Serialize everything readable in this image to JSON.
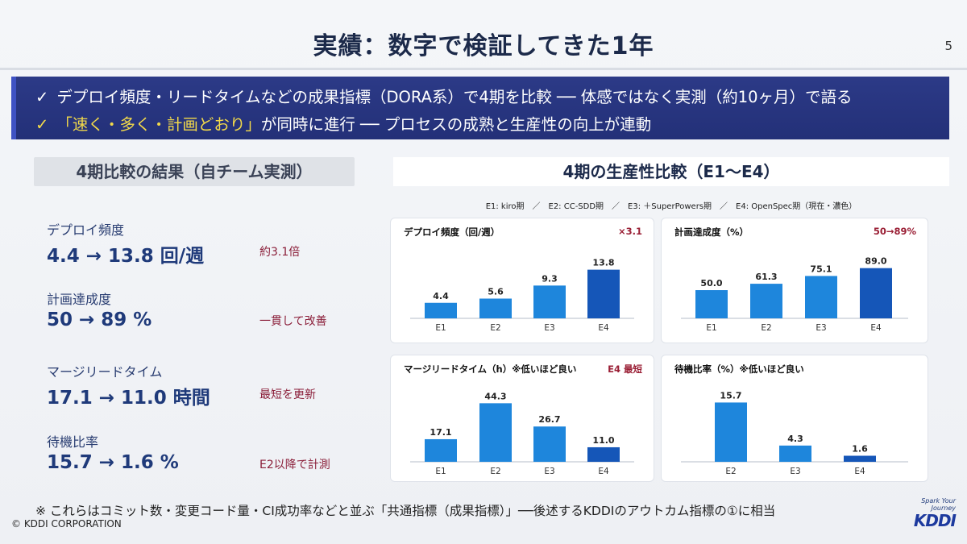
{
  "slide": {
    "title": "実績：数字で検証してきた1年",
    "page_number": "5",
    "banner": {
      "line1": "デプロイ頻度・リードタイムなどの成果指標（DORA系）で4期を比較 ── 体感ではなく実測（約10ヶ月）で語る",
      "line2_highlight": "「速く・多く・計画どおり」",
      "line2_rest": "が同時に進行 ── プロセスの成熟と生産性の向上が連動",
      "check": "✓"
    },
    "left_heading": "4期比較の結果（自チーム実測）",
    "right_heading": "4期の生産性比較（E1〜E4）",
    "legend": "E1: kiro期　／　E2: CC-SDD期　／　E3: ＋SuperPowers期　／　E4: OpenSpec期（現在・濃色）",
    "metrics": [
      {
        "label": "デプロイ頻度",
        "value": "4.4 → 13.8 回/週",
        "note": "約3.1倍"
      },
      {
        "label": "計画達成度",
        "value": "50 → 89 %",
        "note": "一貫して改善"
      },
      {
        "label": "マージリードタイム",
        "value": "17.1 → 11.0 時間",
        "note": "最短を更新"
      },
      {
        "label": "待機比率",
        "value": "15.7 → 1.6 %",
        "note": "E2以降で計測"
      }
    ],
    "footnote": "※ これらはコミット数・変更コード量・CI成功率などと並ぶ「共通指標（成果指標）」──後述するKDDIのアウトカム指標の①に相当",
    "copyright": "© KDDI CORPORATION",
    "logo_tagline": "Spark Your Journey",
    "logo_text": "KDDI",
    "colors": {
      "bar": "#1e86dc",
      "bar_dark": "#1556b8",
      "banner": "#2a378a",
      "note": "#8b1f3a",
      "highlight": "#f2d94a"
    }
  },
  "chart_data": [
    {
      "type": "bar",
      "title": "デプロイ頻度（回/週）",
      "badge": "×3.1",
      "categories": [
        "E1",
        "E2",
        "E3",
        "E4"
      ],
      "values": [
        4.4,
        5.6,
        9.3,
        13.8
      ],
      "labels": [
        "4.4",
        "5.6",
        "9.3",
        "13.8"
      ],
      "ylim": [
        0,
        16
      ]
    },
    {
      "type": "bar",
      "title": "計画達成度（%）",
      "badge": "50→89%",
      "categories": [
        "E1",
        "E2",
        "E3",
        "E4"
      ],
      "values": [
        50.0,
        61.3,
        75.1,
        89.0
      ],
      "labels": [
        "50.0",
        "61.3",
        "75.1",
        "89.0"
      ],
      "ylim": [
        0,
        100
      ]
    },
    {
      "type": "bar",
      "title": "マージリードタイム（h）※低いほど良い",
      "badge": "E4 最短",
      "categories": [
        "E1",
        "E2",
        "E3",
        "E4"
      ],
      "values": [
        17.1,
        44.3,
        26.7,
        11.0
      ],
      "labels": [
        "17.1",
        "44.3",
        "26.7",
        "11.0"
      ],
      "ylim": [
        0,
        50
      ]
    },
    {
      "type": "bar",
      "title": "待機比率（%）※低いほど良い",
      "badge": "",
      "categories": [
        "E2",
        "E3",
        "E4"
      ],
      "values": [
        15.7,
        4.3,
        1.6
      ],
      "labels": [
        "15.7",
        "4.3",
        "1.6"
      ],
      "ylim": [
        0,
        17.5
      ]
    }
  ]
}
